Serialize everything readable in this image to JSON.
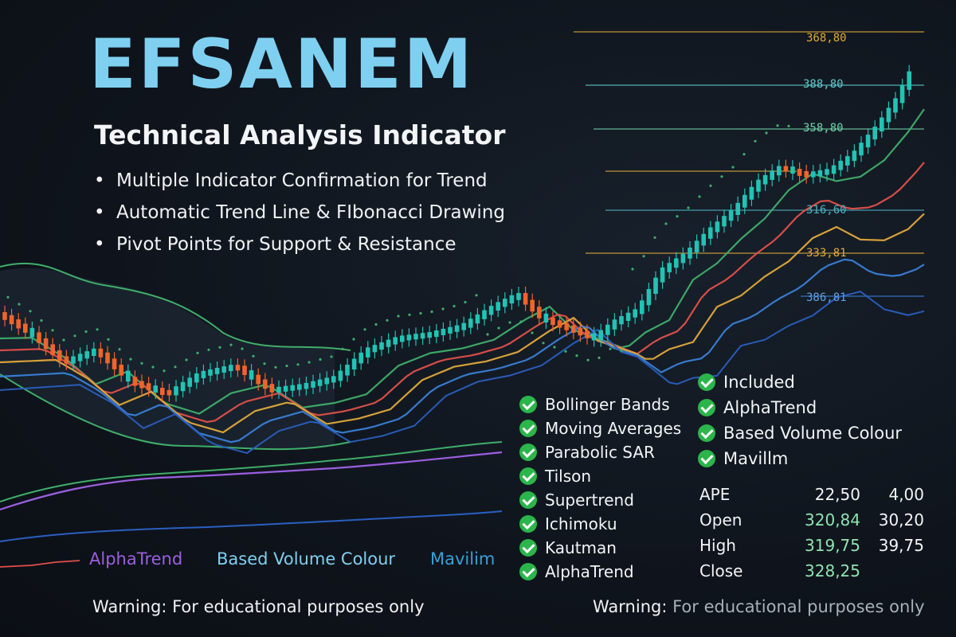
{
  "title": "EFSANEM",
  "subtitle": "Technical Analysis Indicator",
  "bullets": [
    "Multiple Indicator Confirmation for Trend",
    "Automatic Trend Line & FIbonacci Drawing",
    "Pivot Points for Support & Resistance"
  ],
  "fib_levels": [
    {
      "label": "368,80",
      "color": "#e0a93a"
    },
    {
      "label": "388,80",
      "color": "#5fc9c9"
    },
    {
      "label": "358,80",
      "color": "#6fd1a8"
    },
    {
      "label": "",
      "color": "#e0a93a"
    },
    {
      "label": "316,60",
      "color": "#4fb0c0"
    },
    {
      "label": "333,81",
      "color": "#e0a93a"
    },
    {
      "label": "386,81",
      "color": "#3a7fd8"
    }
  ],
  "features_left": [
    "Bollinger Bands",
    "Moving Averages",
    "Parabolic SAR",
    "Tilson",
    "Supertrend",
    "Ichimoku",
    "Kautman",
    "AlphaTrend"
  ],
  "features_right": [
    "Included",
    "AlphaTrend",
    "Based Volume Colour",
    "Mavillm"
  ],
  "stats": [
    {
      "label": "APE",
      "v1": "22,50",
      "v2": "4,00"
    },
    {
      "label": "Open",
      "v1": "320,84",
      "v2": "30,20"
    },
    {
      "label": "High",
      "v1": "319,75",
      "v2": "39,75"
    },
    {
      "label": "Close",
      "v1": "328,25",
      "v2": ""
    }
  ],
  "bottom_labels": {
    "alphatrend": "AlphaTrend",
    "based_volume": "Based Volume Colour",
    "mavilim": "Mavilim"
  },
  "warnings": {
    "left": "Warning: For educational purposes only",
    "right_prefix": "Warning:",
    "right_rest": " For educational purposes only"
  },
  "colors": {
    "title": "#7fd0f0",
    "bull": "#22c3b4",
    "bear": "#f0642c",
    "check": "#2bb54a",
    "stat_green": "#8fe3b0",
    "alphatrend": "#9b5fe0",
    "based_volume": "#7fd0f0",
    "mavilim": "#3aa0d8"
  },
  "icons": {
    "check": "check-circle-icon",
    "bullet": "bullet-dot-icon"
  }
}
